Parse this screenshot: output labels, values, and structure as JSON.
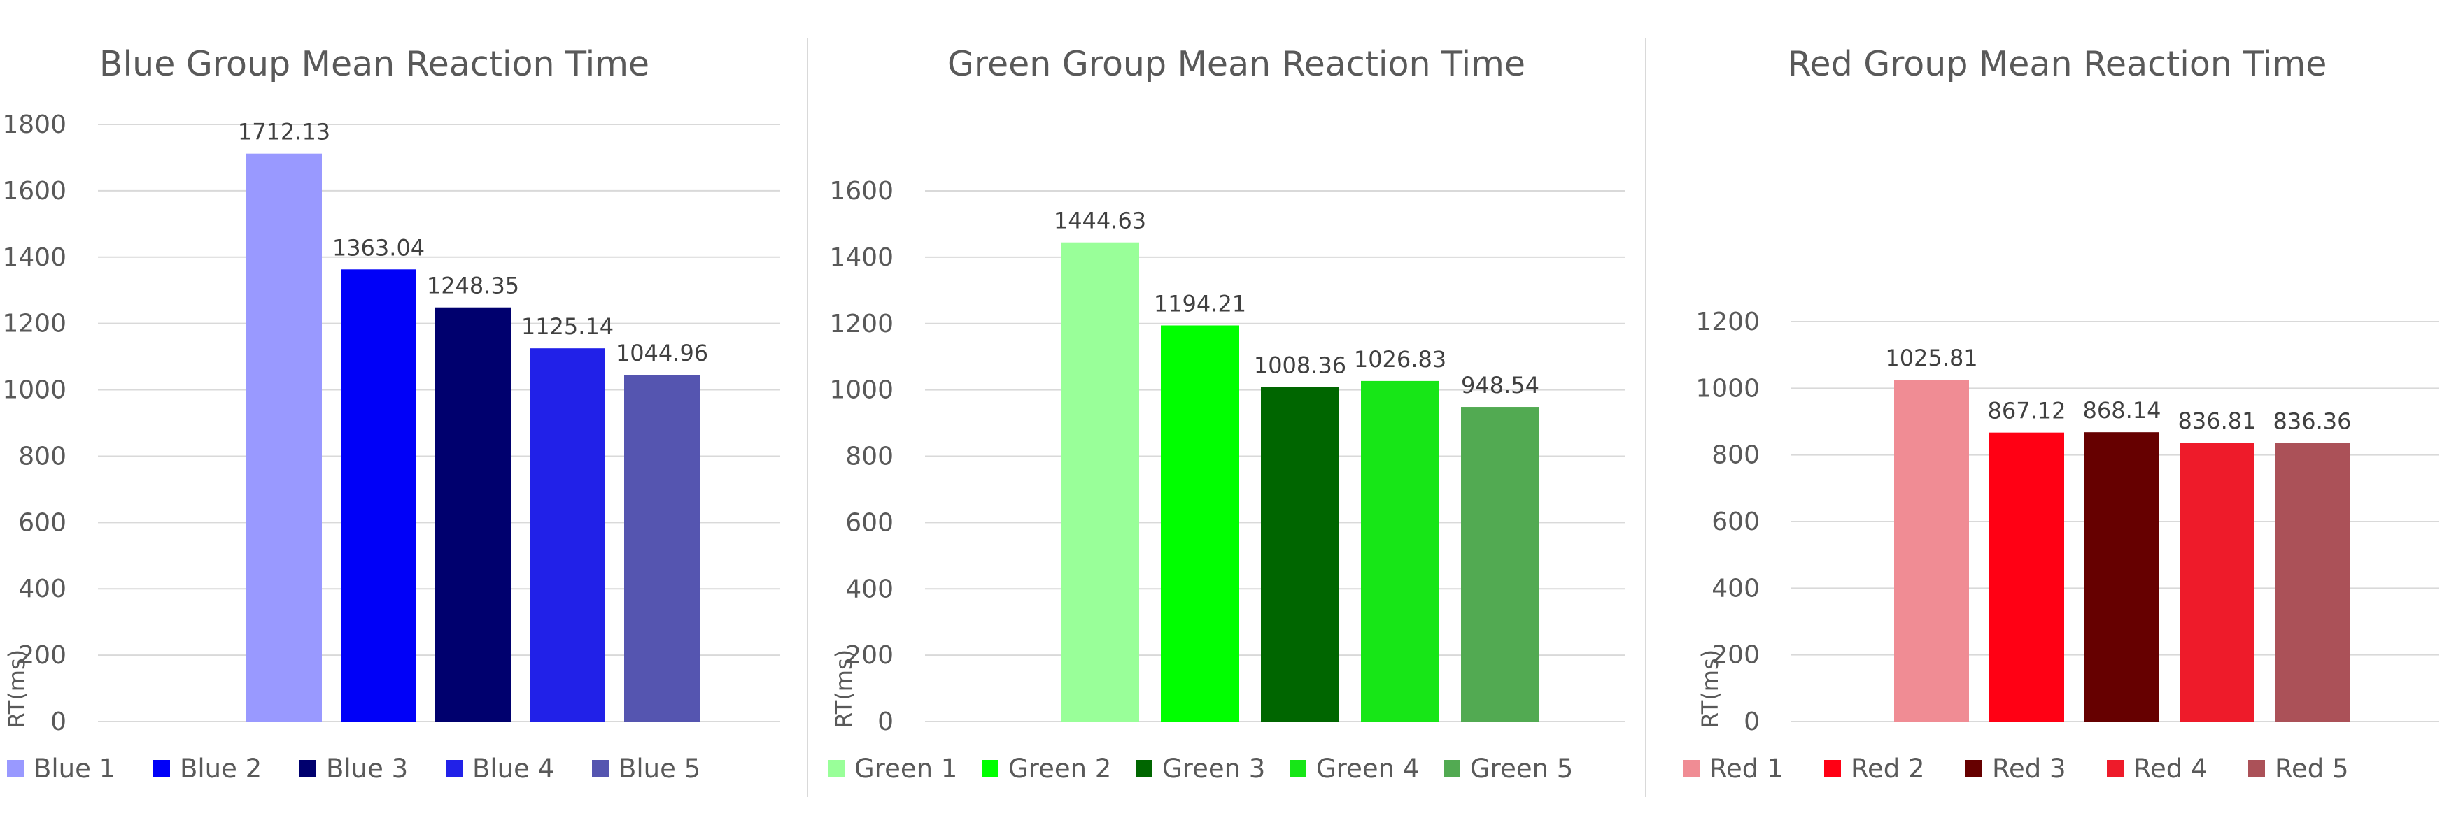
{
  "chart_data": [
    {
      "type": "bar",
      "title": "Blue Group Mean Reaction Time",
      "ylabel": "RT(ms)",
      "ylim": [
        0,
        1800
      ],
      "yticks": [
        0,
        200,
        400,
        600,
        800,
        1000,
        1200,
        1400,
        1600,
        1800
      ],
      "grid": true,
      "legend": "bottom",
      "categories": [
        "Blue 1",
        "Blue 2",
        "Blue 3",
        "Blue 4",
        "Blue 5"
      ],
      "values": [
        1712.13,
        1363.04,
        1248.35,
        1125.14,
        1044.96
      ],
      "labels": [
        "1712.13",
        "1363.04",
        "1248.35",
        "1125.14",
        "1044.96"
      ],
      "colors": [
        "#9999FF",
        "#0000F8",
        "#00006E",
        "#2121E8",
        "#5555B0"
      ]
    },
    {
      "type": "bar",
      "title": "Green Group Mean Reaction Time",
      "ylabel": "RT(ms)",
      "ylim": [
        0,
        1600
      ],
      "yticks": [
        0,
        200,
        400,
        600,
        800,
        1000,
        1200,
        1400,
        1600
      ],
      "grid": true,
      "legend": "bottom",
      "categories": [
        "Green 1",
        "Green 2",
        "Green 3",
        "Green 4",
        "Green 5"
      ],
      "values": [
        1444.63,
        1194.21,
        1008.36,
        1026.83,
        948.54
      ],
      "labels": [
        "1444.63",
        "1194.21",
        "1008.36",
        "1026.83",
        "948.54"
      ],
      "colors": [
        "#99FF99",
        "#00FF00",
        "#006600",
        "#17E617",
        "#52AA52"
      ]
    },
    {
      "type": "bar",
      "title": "Red Group Mean Reaction Time",
      "ylabel": "RT(ms)",
      "ylim": [
        0,
        1200
      ],
      "yticks": [
        0,
        200,
        400,
        600,
        800,
        1000,
        1200
      ],
      "grid": true,
      "legend": "bottom",
      "categories": [
        "Red 1",
        "Red 2",
        "Red 3",
        "Red 4",
        "Red 5"
      ],
      "values": [
        1025.81,
        867.12,
        868.14,
        836.81,
        836.36
      ],
      "labels": [
        "1025.81",
        "867.12",
        "868.14",
        "836.81",
        "836.36"
      ],
      "colors": [
        "#F08C94",
        "#FF0014",
        "#660000",
        "#EE1B2A",
        "#AB5158"
      ]
    }
  ]
}
